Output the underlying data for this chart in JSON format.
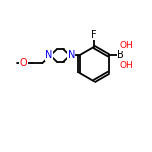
{
  "bg_color": "#ffffff",
  "bond_color": "#000000",
  "bond_width": 1.3,
  "atom_colors": {
    "F": "#000000",
    "B": "#000000",
    "O": "#ff0000",
    "N": "#0000ff",
    "C": "#000000",
    "H": "#000000"
  },
  "font_size": 6.5,
  "figsize": [
    1.52,
    1.52
  ],
  "dpi": 100,
  "xlim": [
    0,
    10
  ],
  "ylim": [
    0,
    10
  ]
}
